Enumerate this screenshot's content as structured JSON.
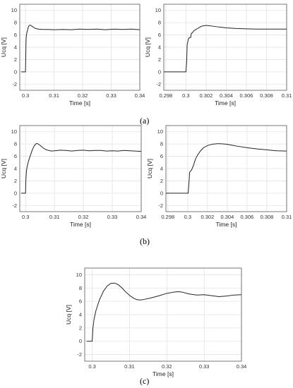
{
  "captions": [
    "(a)",
    "(b)",
    "(c)"
  ],
  "chart_data": [
    {
      "type": "line",
      "xlabel": "Time [s]",
      "ylabel": "Ucq [V]",
      "xlim": [
        0.298,
        0.34
      ],
      "ylim": [
        -3,
        11
      ],
      "xticks": [
        0.3,
        0.31,
        0.32,
        0.33,
        0.34
      ],
      "xtick_labels": [
        "0.3",
        "0.31",
        "0.32",
        "0.33",
        "0.34"
      ],
      "yticks": [
        -2,
        0,
        2,
        4,
        6,
        8,
        10
      ],
      "ytick_labels": [
        "-2",
        "0",
        "2",
        "4",
        "6",
        "8",
        "10"
      ],
      "grid": true,
      "series": [
        {
          "x": [
            0.2985,
            0.3,
            0.30005,
            0.30012,
            0.30018,
            0.30025,
            0.3003,
            0.30045,
            0.3006,
            0.3008,
            0.301,
            0.3013,
            0.3017,
            0.3022,
            0.3028,
            0.3035,
            0.3045,
            0.306,
            0.308,
            0.31,
            0.313,
            0.316,
            0.319,
            0.322,
            0.325,
            0.328,
            0.331,
            0.334,
            0.337,
            0.34
          ],
          "y": [
            0,
            0,
            1.2,
            3.0,
            4.8,
            5.6,
            5.8,
            6.3,
            6.6,
            6.9,
            7.3,
            7.55,
            7.6,
            7.45,
            7.25,
            7.05,
            6.95,
            6.9,
            6.9,
            6.85,
            6.9,
            6.85,
            6.95,
            6.9,
            6.95,
            6.85,
            6.95,
            6.9,
            6.95,
            6.85
          ]
        }
      ]
    },
    {
      "type": "line",
      "xlabel": "Time [s]",
      "ylabel": "Ucq [V]",
      "xlim": [
        0.2978,
        0.31
      ],
      "ylim": [
        -3,
        11
      ],
      "xticks": [
        0.298,
        0.3,
        0.302,
        0.304,
        0.306,
        0.308,
        0.31
      ],
      "xtick_labels": [
        "0.298",
        "0.3",
        "0.302",
        "0.304",
        "0.306",
        "0.308",
        "0.31"
      ],
      "yticks": [
        -2,
        0,
        2,
        4,
        6,
        8,
        10
      ],
      "ytick_labels": [
        "-2",
        "0",
        "2",
        "4",
        "6",
        "8",
        "10"
      ],
      "grid": true,
      "series": [
        {
          "x": [
            0.2978,
            0.3,
            0.30008,
            0.30012,
            0.30015,
            0.30022,
            0.30025,
            0.3003,
            0.30035,
            0.3004,
            0.30048,
            0.3005,
            0.30055,
            0.3006,
            0.3007,
            0.3008,
            0.3009,
            0.301,
            0.3012,
            0.3014,
            0.3016,
            0.3018,
            0.302,
            0.3023,
            0.3026,
            0.303,
            0.3035,
            0.304,
            0.305,
            0.306,
            0.307,
            0.308,
            0.309,
            0.31
          ],
          "y": [
            0,
            0,
            2.0,
            4.4,
            4.6,
            5.2,
            5.4,
            5.5,
            5.5,
            5.6,
            5.6,
            6.0,
            6.3,
            6.3,
            6.5,
            6.7,
            6.8,
            6.9,
            7.1,
            7.3,
            7.45,
            7.5,
            7.55,
            7.5,
            7.45,
            7.35,
            7.25,
            7.15,
            7.05,
            7.0,
            6.95,
            6.95,
            6.95,
            6.95
          ]
        }
      ]
    },
    {
      "type": "line",
      "xlabel": "Time [s]",
      "ylabel": "Ucq [V]",
      "xlim": [
        0.298,
        0.34
      ],
      "ylim": [
        -3,
        11
      ],
      "xticks": [
        0.3,
        0.31,
        0.32,
        0.33,
        0.34
      ],
      "xtick_labels": [
        "0.3",
        "0.31",
        "0.32",
        "0.33",
        "0.34"
      ],
      "yticks": [
        -2,
        0,
        2,
        4,
        6,
        8,
        10
      ],
      "ytick_labels": [
        "-2",
        "0",
        "2",
        "4",
        "6",
        "8",
        "10"
      ],
      "grid": true,
      "series": [
        {
          "x": [
            0.2985,
            0.3,
            0.3001,
            0.3003,
            0.3006,
            0.301,
            0.3015,
            0.302,
            0.3025,
            0.303,
            0.3035,
            0.304,
            0.305,
            0.306,
            0.307,
            0.308,
            0.309,
            0.31,
            0.312,
            0.314,
            0.316,
            0.318,
            0.32,
            0.322,
            0.324,
            0.326,
            0.328,
            0.33,
            0.332,
            0.334,
            0.336,
            0.338,
            0.34
          ],
          "y": [
            0,
            0,
            2.0,
            3.6,
            4.4,
            5.2,
            5.9,
            6.6,
            7.25,
            7.7,
            8.0,
            8.1,
            7.8,
            7.4,
            7.1,
            6.95,
            6.85,
            6.9,
            7.0,
            6.95,
            6.85,
            6.95,
            7.0,
            6.9,
            6.95,
            6.95,
            6.85,
            6.9,
            6.85,
            6.95,
            6.9,
            6.85,
            6.8
          ]
        }
      ]
    },
    {
      "type": "line",
      "xlabel": "Time [s]",
      "ylabel": "Ucq [V]",
      "xlim": [
        0.2978,
        0.31
      ],
      "ylim": [
        -3,
        11
      ],
      "xticks": [
        0.298,
        0.3,
        0.302,
        0.304,
        0.306,
        0.308,
        0.31
      ],
      "xtick_labels": [
        "0.298",
        "0.3",
        "0.302",
        "0.304",
        "0.306",
        "0.308",
        "0.31"
      ],
      "yticks": [
        -2,
        0,
        2,
        4,
        6,
        8,
        10
      ],
      "ytick_labels": [
        "-2",
        "0",
        "2",
        "4",
        "6",
        "8",
        "10"
      ],
      "grid": true,
      "series": [
        {
          "x": [
            0.2978,
            0.30005,
            0.30015,
            0.3002,
            0.3003,
            0.3004,
            0.3006,
            0.3008,
            0.301,
            0.3013,
            0.3016,
            0.302,
            0.3025,
            0.303,
            0.3033,
            0.3037,
            0.304,
            0.3045,
            0.305,
            0.306,
            0.307,
            0.308,
            0.309,
            0.31
          ],
          "y": [
            0,
            0,
            2.2,
            3.4,
            3.6,
            3.8,
            4.6,
            5.6,
            6.2,
            6.9,
            7.4,
            7.75,
            7.98,
            8.05,
            8.05,
            8.0,
            7.95,
            7.8,
            7.65,
            7.4,
            7.2,
            7.05,
            6.9,
            6.85
          ]
        }
      ]
    },
    {
      "type": "line",
      "xlabel": "Time [s]",
      "ylabel": "Ucq [V]",
      "xlim": [
        0.298,
        0.34
      ],
      "ylim": [
        -3,
        11
      ],
      "xticks": [
        0.3,
        0.31,
        0.32,
        0.33,
        0.34
      ],
      "xtick_labels": [
        "0.3",
        "0.31",
        "0.32",
        "0.33",
        "0.34"
      ],
      "yticks": [
        -2,
        0,
        2,
        4,
        6,
        8,
        10
      ],
      "ytick_labels": [
        "-2",
        "0",
        "2",
        "4",
        "6",
        "8",
        "10"
      ],
      "grid": true,
      "series": [
        {
          "x": [
            0.2985,
            0.3,
            0.3002,
            0.3005,
            0.301,
            0.302,
            0.303,
            0.304,
            0.305,
            0.306,
            0.307,
            0.308,
            0.309,
            0.31,
            0.311,
            0.312,
            0.313,
            0.314,
            0.316,
            0.318,
            0.32,
            0.322,
            0.323,
            0.324,
            0.326,
            0.328,
            0.33,
            0.332,
            0.334,
            0.336,
            0.338,
            0.34
          ],
          "y": [
            0,
            0,
            2.0,
            3.3,
            4.6,
            6.3,
            7.5,
            8.3,
            8.7,
            8.75,
            8.5,
            8.0,
            7.4,
            6.9,
            6.5,
            6.25,
            6.2,
            6.3,
            6.55,
            6.85,
            7.2,
            7.4,
            7.45,
            7.4,
            7.1,
            6.95,
            7.0,
            6.85,
            6.7,
            6.8,
            6.95,
            7.0
          ]
        }
      ]
    }
  ]
}
